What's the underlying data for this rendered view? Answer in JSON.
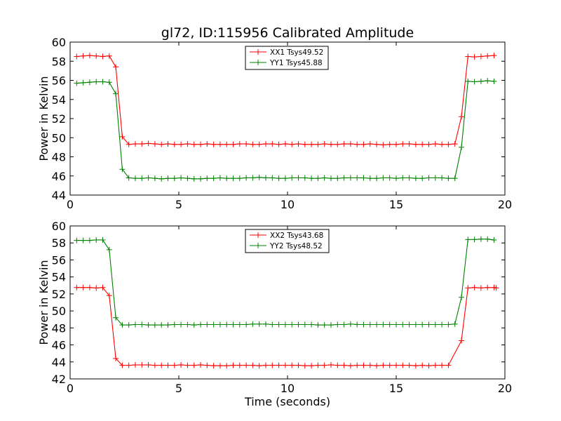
{
  "chart_data": [
    {
      "type": "line",
      "title": "gl72, ID:115956 Calibrated Amplitude",
      "xlabel": "",
      "ylabel": "Power in Kelvin",
      "xlim": [
        0,
        20
      ],
      "ylim": [
        44,
        60
      ],
      "xticks": [
        "0",
        "5",
        "10",
        "15",
        "20"
      ],
      "yticks": [
        "44",
        "46",
        "48",
        "50",
        "52",
        "54",
        "56",
        "58",
        "60"
      ],
      "grid": false,
      "legend": "top-center",
      "x": [
        0.3,
        0.6,
        0.9,
        1.2,
        1.5,
        1.8,
        2.1,
        2.4,
        2.7,
        3.0,
        3.3,
        3.6,
        3.9,
        4.2,
        4.5,
        4.8,
        5.1,
        5.4,
        5.7,
        6.0,
        6.3,
        6.6,
        6.9,
        7.2,
        7.5,
        7.8,
        8.1,
        8.4,
        8.7,
        9.0,
        9.3,
        9.6,
        9.9,
        10.2,
        10.5,
        10.8,
        11.1,
        11.4,
        11.7,
        12.0,
        12.3,
        12.6,
        12.9,
        13.2,
        13.5,
        13.8,
        14.1,
        14.4,
        14.7,
        15.0,
        15.3,
        15.6,
        15.9,
        16.2,
        16.5,
        16.8,
        17.1,
        17.4,
        17.7,
        18.0,
        18.3,
        18.6,
        18.9,
        19.2,
        19.5
      ],
      "series": [
        {
          "name": "XX1 Tsys49.52",
          "color": "#ff0000",
          "values": [
            58.5,
            58.55,
            58.6,
            58.55,
            58.5,
            58.55,
            57.4,
            50.1,
            49.3,
            49.35,
            49.35,
            49.4,
            49.35,
            49.3,
            49.35,
            49.3,
            49.3,
            49.35,
            49.3,
            49.3,
            49.35,
            49.3,
            49.3,
            49.3,
            49.3,
            49.35,
            49.35,
            49.3,
            49.3,
            49.35,
            49.35,
            49.3,
            49.35,
            49.3,
            49.35,
            49.3,
            49.3,
            49.3,
            49.35,
            49.3,
            49.3,
            49.35,
            49.35,
            49.3,
            49.3,
            49.35,
            49.3,
            49.25,
            49.3,
            49.3,
            49.35,
            49.35,
            49.3,
            49.3,
            49.3,
            49.35,
            49.3,
            49.3,
            49.35,
            52.2,
            58.5,
            58.45,
            58.5,
            58.55,
            58.6
          ]
        },
        {
          "name": "YY1 Tsys45.88",
          "color": "#008000",
          "values": [
            55.7,
            55.75,
            55.8,
            55.85,
            55.85,
            55.8,
            54.6,
            46.7,
            45.8,
            45.75,
            45.75,
            45.8,
            45.75,
            45.7,
            45.75,
            45.75,
            45.8,
            45.75,
            45.7,
            45.7,
            45.75,
            45.75,
            45.8,
            45.75,
            45.75,
            45.75,
            45.8,
            45.8,
            45.85,
            45.8,
            45.8,
            45.75,
            45.75,
            45.8,
            45.8,
            45.8,
            45.75,
            45.75,
            45.8,
            45.75,
            45.75,
            45.8,
            45.8,
            45.8,
            45.8,
            45.75,
            45.75,
            45.8,
            45.8,
            45.75,
            45.8,
            45.8,
            45.75,
            45.75,
            45.8,
            45.8,
            45.8,
            45.75,
            45.75,
            49.0,
            55.9,
            55.85,
            55.9,
            55.95,
            55.9
          ]
        }
      ]
    },
    {
      "type": "line",
      "title": "",
      "xlabel": "Time (seconds)",
      "ylabel": "Power in Kelvin",
      "xlim": [
        0,
        20
      ],
      "ylim": [
        42,
        60
      ],
      "xticks": [
        "0",
        "5",
        "10",
        "15",
        "20"
      ],
      "yticks": [
        "42",
        "44",
        "46",
        "48",
        "50",
        "52",
        "54",
        "56",
        "58",
        "60"
      ],
      "grid": false,
      "legend": "top-center",
      "x": [
        0.3,
        0.6,
        0.9,
        1.2,
        1.5,
        1.8,
        2.1,
        2.4,
        2.7,
        3.0,
        3.3,
        3.6,
        3.9,
        4.2,
        4.5,
        4.8,
        5.1,
        5.4,
        5.7,
        6.0,
        6.3,
        6.6,
        6.9,
        7.2,
        7.5,
        7.8,
        8.1,
        8.4,
        8.7,
        9.0,
        9.3,
        9.6,
        9.9,
        10.2,
        10.5,
        10.8,
        11.1,
        11.4,
        11.7,
        12.0,
        12.3,
        12.6,
        12.9,
        13.2,
        13.5,
        13.8,
        14.1,
        14.4,
        14.7,
        15.0,
        15.3,
        15.6,
        15.9,
        16.2,
        16.5,
        16.8,
        17.1,
        17.4,
        17.7,
        18.0,
        18.3,
        18.6,
        18.9,
        19.2,
        19.5
      ],
      "series": [
        {
          "name": "XX2 Tsys43.68",
          "color": "#ff0000",
          "values": [
            52.75,
            52.75,
            52.75,
            52.7,
            52.75,
            51.8,
            44.4,
            43.6,
            43.6,
            43.65,
            43.65,
            43.65,
            43.6,
            43.6,
            43.6,
            43.6,
            43.65,
            43.6,
            43.6,
            43.65,
            43.6,
            43.55,
            43.55,
            43.55,
            43.6,
            43.6,
            43.6,
            43.6,
            43.55,
            43.6,
            43.6,
            43.6,
            43.6,
            43.6,
            43.6,
            43.55,
            43.55,
            43.6,
            43.6,
            43.65,
            43.6,
            43.6,
            43.55,
            43.6,
            43.6,
            43.6,
            43.55,
            43.6,
            43.6,
            43.6,
            43.6,
            43.6,
            43.55,
            43.6,
            43.55,
            43.6,
            43.6,
            43.6,
            46.5,
            52.7,
            52.75,
            52.7,
            52.75,
            52.75,
            52.7
          ],
          "x": [
            0.3,
            0.6,
            0.9,
            1.2,
            1.5,
            1.8,
            2.1,
            2.4,
            2.7,
            3.0,
            3.3,
            3.6,
            3.9,
            4.2,
            4.5,
            4.8,
            5.1,
            5.4,
            5.7,
            6.0,
            6.3,
            6.6,
            6.9,
            7.2,
            7.5,
            7.8,
            8.1,
            8.4,
            8.7,
            9.0,
            9.3,
            9.6,
            9.9,
            10.2,
            10.5,
            10.8,
            11.1,
            11.4,
            11.7,
            12.0,
            12.3,
            12.6,
            12.9,
            13.2,
            13.5,
            13.8,
            14.1,
            14.4,
            14.7,
            15.0,
            15.3,
            15.6,
            15.9,
            16.2,
            16.5,
            16.8,
            17.1,
            17.4,
            18.0,
            18.3,
            18.6,
            18.9,
            19.2,
            19.5,
            19.6
          ]
        },
        {
          "name": "YY2 Tsys48.52",
          "color": "#008000",
          "values": [
            58.3,
            58.3,
            58.3,
            58.35,
            58.35,
            57.2,
            49.2,
            48.35,
            48.35,
            48.4,
            48.4,
            48.35,
            48.35,
            48.35,
            48.35,
            48.4,
            48.4,
            48.4,
            48.35,
            48.4,
            48.4,
            48.4,
            48.4,
            48.4,
            48.4,
            48.4,
            48.4,
            48.45,
            48.45,
            48.45,
            48.4,
            48.4,
            48.4,
            48.4,
            48.4,
            48.4,
            48.4,
            48.35,
            48.35,
            48.35,
            48.4,
            48.4,
            48.45,
            48.4,
            48.4,
            48.4,
            48.4,
            48.4,
            48.4,
            48.4,
            48.4,
            48.4,
            48.4,
            48.4,
            48.4,
            48.4,
            48.4,
            48.4,
            48.45,
            51.6,
            58.4,
            58.4,
            58.45,
            58.45,
            58.35
          ]
        }
      ]
    }
  ]
}
